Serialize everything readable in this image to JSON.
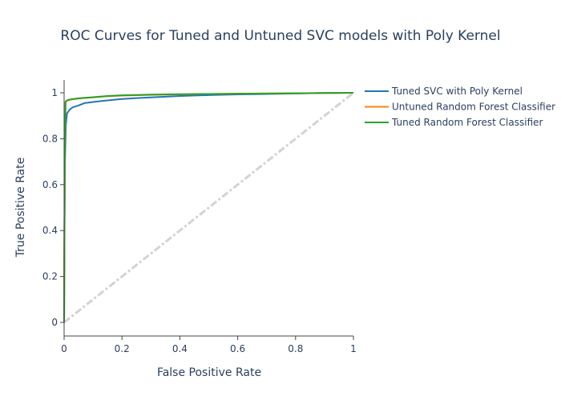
{
  "chart_data": {
    "type": "line",
    "title": "ROC Curves for Tuned and Untuned SVC models with Poly Kernel",
    "xlabel": "False Positive Rate",
    "ylabel": "True Positive Rate",
    "xlim": [
      0,
      1
    ],
    "ylim": [
      0,
      1
    ],
    "xticks": [
      "0",
      "0.2",
      "0.4",
      "0.6",
      "0.8",
      "1"
    ],
    "yticks": [
      "0",
      "0.2",
      "0.4",
      "0.6",
      "0.8",
      "1"
    ],
    "grid": false,
    "legend_position": "right",
    "reference_line": {
      "x": [
        0,
        1
      ],
      "y": [
        0,
        1
      ],
      "color": "#d3d3d3",
      "style": "dashdot"
    },
    "series": [
      {
        "name": "Tuned SVC with Poly Kernel",
        "color": "#1f77b4",
        "x": [
          0,
          0.001,
          0.003,
          0.006,
          0.01,
          0.02,
          0.03,
          0.05,
          0.07,
          0.1,
          0.15,
          0.2,
          0.25,
          0.3,
          0.35,
          0.4,
          0.5,
          0.6,
          0.7,
          0.8,
          0.9,
          1.0
        ],
        "y": [
          0,
          0.3,
          0.7,
          0.86,
          0.91,
          0.928,
          0.937,
          0.945,
          0.955,
          0.96,
          0.967,
          0.973,
          0.977,
          0.98,
          0.983,
          0.986,
          0.99,
          0.993,
          0.995,
          0.997,
          0.999,
          1.0
        ]
      },
      {
        "name": "Untuned Random Forest Classifier",
        "color": "#ff7f0e",
        "x": [
          0,
          0.001,
          0.003,
          0.005,
          0.01,
          0.02,
          0.05,
          0.1,
          0.15,
          0.2,
          0.3,
          0.4,
          0.5,
          0.6,
          0.7,
          0.8,
          0.9,
          1.0
        ],
        "y": [
          0,
          0.4,
          0.8,
          0.96,
          0.966,
          0.97,
          0.975,
          0.98,
          0.985,
          0.988,
          0.991,
          0.993,
          0.995,
          0.996,
          0.997,
          0.998,
          0.999,
          1.0
        ]
      },
      {
        "name": "Tuned Random Forest Classifier",
        "color": "#2ca02c",
        "x": [
          0,
          0.001,
          0.003,
          0.005,
          0.01,
          0.02,
          0.05,
          0.1,
          0.15,
          0.2,
          0.3,
          0.4,
          0.5,
          0.6,
          0.7,
          0.8,
          0.9,
          1.0
        ],
        "y": [
          0,
          0.4,
          0.8,
          0.962,
          0.967,
          0.971,
          0.976,
          0.981,
          0.986,
          0.989,
          0.992,
          0.994,
          0.995,
          0.996,
          0.997,
          0.998,
          0.999,
          1.0
        ]
      }
    ]
  }
}
